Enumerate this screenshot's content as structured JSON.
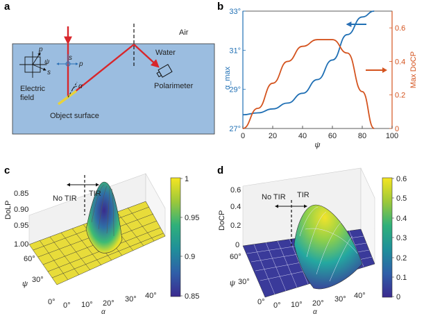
{
  "panel_labels": [
    "a",
    "b",
    "c",
    "d"
  ],
  "panel_a": {
    "air": "Air",
    "water": "Water",
    "polarimeter": "Polarimeter",
    "electric_field": "Electric\nfield",
    "object_surface": "Object surface",
    "p": "p",
    "s": "s",
    "psi": "ψ",
    "alpha": "α",
    "colors": {
      "water": "#9bbde0",
      "beam": "#d8262b",
      "surface": "#e8d23a",
      "axes": "#2a6fb5"
    }
  },
  "chart_data": [
    {
      "panel": "b",
      "type": "line",
      "x": [
        0,
        10,
        20,
        30,
        40,
        50,
        60,
        70,
        80,
        88
      ],
      "xlabel": "ψ",
      "xlim": [
        0,
        100
      ],
      "xticks": [
        "0",
        "20",
        "40",
        "60",
        "80",
        "100"
      ],
      "series": [
        {
          "axis": "left",
          "color": "#1f6fb4",
          "values": [
            27.7,
            27.8,
            28.0,
            28.3,
            28.8,
            29.5,
            30.5,
            31.8,
            32.7,
            33.0
          ]
        },
        {
          "axis": "right",
          "color": "#d4531e",
          "values": [
            0.0,
            0.12,
            0.27,
            0.4,
            0.49,
            0.53,
            0.53,
            0.45,
            0.22,
            0.0
          ]
        }
      ],
      "ylabel_left": "α_max",
      "ylim_left": [
        27,
        33
      ],
      "yticks_left": [
        "27°",
        "29°",
        "31°",
        "33°"
      ],
      "ylabel_right": "Max DoCP",
      "ylim_right": [
        0,
        0.7
      ],
      "yticks_right": [
        "0",
        "0.2",
        "0.4",
        "0.6"
      ],
      "grid": false
    },
    {
      "panel": "c",
      "type": "surface",
      "zlabel": "DoLP",
      "zticks": [
        "0.85",
        "0.90",
        "0.95",
        "1.00"
      ],
      "ylabel": "ψ",
      "yticks": [
        "30°",
        "60°"
      ],
      "xlabel": "α",
      "xticks": [
        "0°",
        "10°",
        "20°",
        "30°",
        "40°"
      ],
      "annotations": [
        "No TIR",
        "TIR"
      ],
      "colorbar": {
        "ticks": [
          "1",
          "0.95",
          "0.9",
          "0.85"
        ],
        "range": [
          0.85,
          1
        ]
      }
    },
    {
      "panel": "d",
      "type": "surface",
      "zlabel": "DoCP",
      "zticks": [
        "0",
        "0.2",
        "0.4",
        "0.6"
      ],
      "ylabel": "ψ",
      "yticks": [
        "30°",
        "60°"
      ],
      "xlabel": "α",
      "xticks": [
        "0°",
        "10°",
        "20°",
        "30°",
        "40°"
      ],
      "annotations": [
        "No TIR",
        "TIR"
      ],
      "colorbar": {
        "ticks": [
          "0.6",
          "0.5",
          "0.4",
          "0.3",
          "0.2",
          "0.1",
          "0"
        ],
        "range": [
          0,
          0.6
        ]
      }
    }
  ]
}
